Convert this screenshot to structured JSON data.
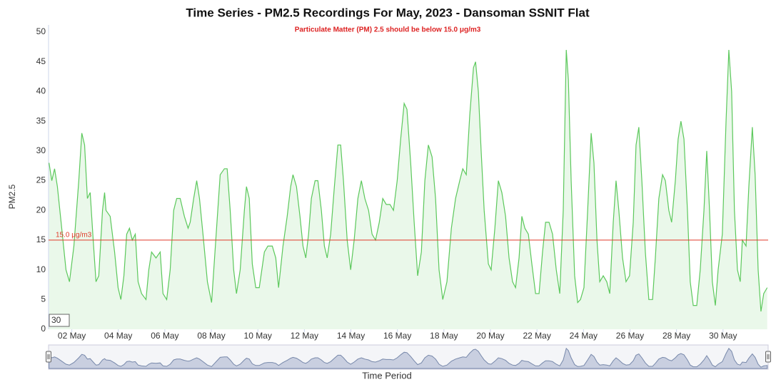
{
  "chart_data": {
    "type": "line",
    "title": "Time Series - PM2.5 Recordings For May, 2023 - Dansoman SSNIT Flat",
    "subtitle": "Particulate Matter (PM) 2.5 should be below 15.0 μg/m3",
    "subtitle_color": "#dd2222",
    "y_label": "PM2.5",
    "x_label": "Time Period",
    "range_input": 30,
    "threshold": {
      "value": 15,
      "label": "15.0 μg/m3",
      "color": "#e03a2a"
    },
    "xlim": [
      1,
      31.94
    ],
    "xticks": [
      {
        "value": 2,
        "label": "02 May"
      },
      {
        "value": 4,
        "label": "04 May"
      },
      {
        "value": 6,
        "label": "06 May"
      },
      {
        "value": 8,
        "label": "08 May"
      },
      {
        "value": 10,
        "label": "10 May"
      },
      {
        "value": 12,
        "label": "12 May"
      },
      {
        "value": 14,
        "label": "14 May"
      },
      {
        "value": 16,
        "label": "16 May"
      },
      {
        "value": 18,
        "label": "18 May"
      },
      {
        "value": 20,
        "label": "20 May"
      },
      {
        "value": 22,
        "label": "22 May"
      },
      {
        "value": 24,
        "label": "24 May"
      },
      {
        "value": 26,
        "label": "26 May"
      },
      {
        "value": 28,
        "label": "28 May"
      },
      {
        "value": 30,
        "label": "30 May"
      }
    ],
    "ylim": [
      0,
      50
    ],
    "yticks": [
      0,
      5,
      10,
      15,
      20,
      25,
      30,
      35,
      40,
      45,
      50
    ],
    "grid": false,
    "x": [
      1.02,
      1.14,
      1.26,
      1.38,
      1.54,
      1.75,
      1.9,
      2.09,
      2.3,
      2.43,
      2.55,
      2.67,
      2.79,
      2.92,
      3.04,
      3.16,
      3.32,
      3.41,
      3.47,
      3.65,
      3.84,
      3.99,
      4.11,
      4.24,
      4.36,
      4.48,
      4.6,
      4.73,
      4.85,
      5.0,
      5.19,
      5.31,
      5.43,
      5.62,
      5.8,
      5.92,
      6.08,
      6.23,
      6.38,
      6.51,
      6.66,
      6.84,
      7.0,
      7.09,
      7.24,
      7.37,
      7.49,
      7.64,
      7.83,
      8.01,
      8.19,
      8.38,
      8.56,
      8.68,
      8.81,
      8.96,
      9.08,
      9.24,
      9.42,
      9.51,
      9.63,
      9.76,
      9.91,
      10.06,
      10.28,
      10.43,
      10.62,
      10.77,
      10.89,
      11.08,
      11.26,
      11.41,
      11.51,
      11.66,
      11.81,
      11.94,
      12.06,
      12.18,
      12.3,
      12.46,
      12.58,
      12.73,
      12.86,
      12.98,
      13.13,
      13.29,
      13.44,
      13.56,
      13.68,
      13.84,
      13.99,
      14.14,
      14.3,
      14.45,
      14.6,
      14.76,
      14.91,
      15.06,
      15.22,
      15.37,
      15.52,
      15.68,
      15.83,
      15.99,
      16.14,
      16.29,
      16.41,
      16.57,
      16.72,
      16.87,
      17.03,
      17.18,
      17.33,
      17.49,
      17.64,
      17.79,
      17.95,
      18.13,
      18.32,
      18.5,
      18.68,
      18.81,
      18.96,
      19.11,
      19.27,
      19.36,
      19.48,
      19.6,
      19.73,
      19.91,
      20.03,
      20.19,
      20.34,
      20.49,
      20.65,
      20.8,
      20.95,
      21.08,
      21.23,
      21.35,
      21.48,
      21.63,
      21.78,
      21.94,
      22.09,
      22.24,
      22.37,
      22.52,
      22.67,
      22.83,
      22.98,
      23.13,
      23.26,
      23.35,
      23.47,
      23.62,
      23.75,
      23.87,
      24.02,
      24.18,
      24.33,
      24.45,
      24.58,
      24.7,
      24.85,
      25.0,
      25.13,
      25.28,
      25.4,
      25.52,
      25.68,
      25.83,
      25.98,
      26.14,
      26.26,
      26.38,
      26.51,
      26.66,
      26.81,
      26.97,
      27.09,
      27.24,
      27.4,
      27.52,
      27.67,
      27.79,
      27.95,
      28.07,
      28.19,
      28.32,
      28.47,
      28.59,
      28.72,
      28.87,
      29.02,
      29.18,
      29.3,
      29.42,
      29.54,
      29.67,
      29.79,
      29.97,
      30.13,
      30.25,
      30.37,
      30.49,
      30.62,
      30.74,
      30.83,
      30.99,
      31.11,
      31.26,
      31.38,
      31.51,
      31.63,
      31.75,
      31.9
    ],
    "series": [
      {
        "name": "PM2.5",
        "color": "#5cc85c",
        "fill": "#eaf8ea",
        "values": [
          28,
          25,
          27,
          24,
          18,
          10,
          8,
          14,
          25,
          33,
          31,
          22,
          23,
          15,
          8,
          9,
          20,
          23,
          20,
          19,
          13,
          7,
          5,
          9,
          16,
          17,
          15,
          16,
          8,
          6,
          5,
          10,
          13,
          12,
          13,
          6,
          5,
          10,
          20,
          22,
          22,
          19,
          17,
          18,
          22,
          25,
          22,
          16,
          8,
          4.5,
          15,
          26,
          27,
          27,
          20,
          10,
          6,
          10,
          20,
          24,
          22,
          11,
          7,
          7,
          13,
          14,
          14,
          12,
          7,
          14,
          19,
          24,
          26,
          24,
          19,
          14,
          12,
          16,
          22,
          25,
          25,
          20,
          14,
          12,
          16,
          24,
          31,
          31,
          25,
          15,
          10,
          15,
          22,
          25,
          22,
          20,
          16,
          15,
          18,
          22,
          21,
          21,
          20,
          25,
          32,
          38,
          37,
          28,
          18,
          9,
          13,
          25,
          31,
          29,
          22,
          10,
          5,
          8,
          17,
          22,
          25,
          27,
          26,
          36,
          44,
          45,
          40,
          30,
          20,
          11,
          10,
          17,
          25,
          23,
          19,
          12,
          8,
          7,
          12,
          19,
          17,
          16,
          11,
          6,
          6,
          13,
          18,
          18,
          16,
          10,
          6,
          20,
          47,
          42,
          25,
          9,
          4.5,
          5,
          7,
          20,
          33,
          28,
          15,
          8,
          9,
          8,
          6,
          18,
          25,
          20,
          12,
          8,
          9,
          18,
          31,
          34,
          25,
          13,
          5,
          5,
          12,
          22,
          26,
          25,
          20,
          18,
          25,
          32,
          35,
          32,
          20,
          8,
          4,
          4,
          10,
          20,
          30,
          20,
          8,
          4,
          10,
          16,
          35,
          47,
          40,
          20,
          10,
          8,
          15,
          14,
          24,
          34,
          26,
          10,
          3,
          6,
          7
        ]
      }
    ]
  }
}
